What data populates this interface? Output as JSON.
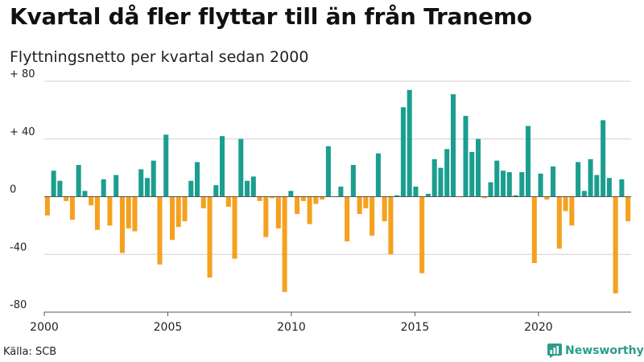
{
  "header": {
    "title": "Kvartal då fler flyttar till än från Tranemo",
    "subtitle": "Flyttningsnetto per kvartal sedan 2000"
  },
  "footer": {
    "source": "Källa: SCB",
    "brand": "Newsworthy"
  },
  "colors": {
    "positive": "#1b9e8f",
    "negative": "#f5a11f",
    "grid": "#d0d0d0",
    "zero_line": "#555555",
    "brand": "#2a9d8f"
  },
  "chart_data": {
    "type": "bar",
    "title": "Kvartal då fler flyttar till än från Tranemo",
    "subtitle": "Flyttningsnetto per kvartal sedan 2000",
    "xlabel": "",
    "ylabel": "",
    "ylim": [
      -80,
      80
    ],
    "yticks": [
      80,
      40,
      0,
      -40,
      -80
    ],
    "ytick_labels": [
      "+ 80",
      "+ 40",
      "0",
      "-40",
      "-80"
    ],
    "xlim": [
      2000,
      2023.75
    ],
    "xticks": [
      2000,
      2005,
      2010,
      2015,
      2020
    ],
    "xtick_labels": [
      "2000",
      "2005",
      "2010",
      "2015",
      "2020"
    ],
    "grid": true,
    "legend": "none",
    "series": [
      {
        "start_period": "2000-Q1",
        "values": [
          -13,
          18,
          11,
          -3,
          -16,
          22,
          4,
          -6,
          -23,
          12,
          -20,
          15,
          -39,
          -22,
          -24,
          19,
          13,
          25,
          -47,
          43,
          -30,
          -21,
          -17,
          11,
          24,
          -8,
          -56,
          8,
          42,
          -7,
          -43,
          40,
          11,
          14,
          -3,
          -28,
          -1,
          -22,
          -66,
          4,
          -12,
          -3,
          -19,
          -5,
          -2,
          35,
          0,
          7,
          -31,
          22,
          -12,
          -8,
          -27,
          30,
          -17,
          -40,
          1,
          62,
          74,
          7,
          -53,
          2,
          26,
          20,
          33,
          71,
          0,
          56,
          31,
          40,
          -1,
          10,
          25,
          18,
          17,
          1,
          17,
          49,
          -46,
          16,
          -2,
          21,
          -36,
          -10,
          -20,
          24,
          4,
          26,
          15,
          53,
          13,
          -67,
          12,
          -17
        ]
      }
    ]
  }
}
